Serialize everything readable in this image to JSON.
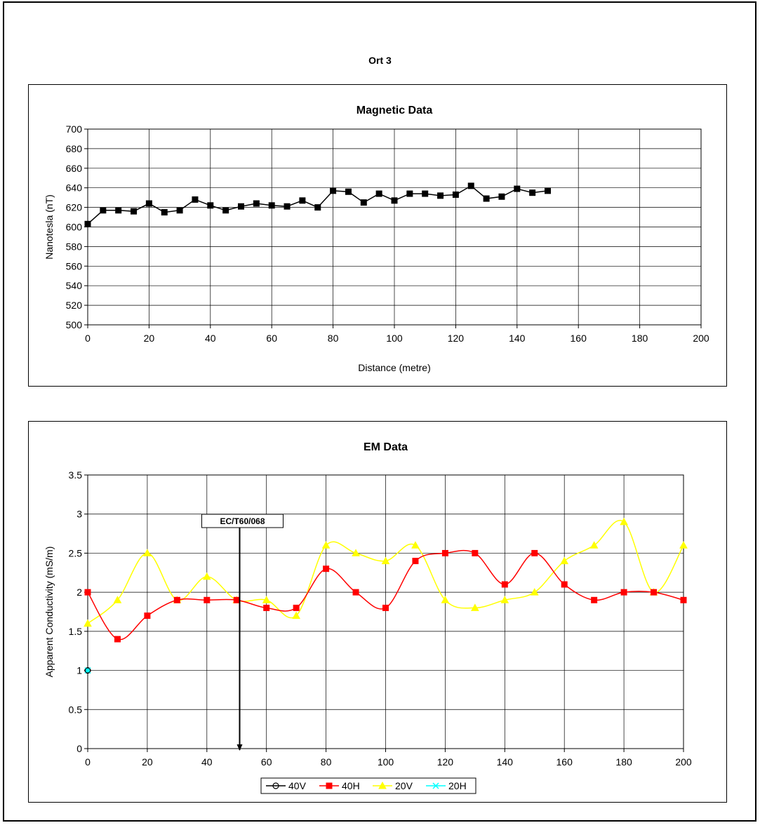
{
  "page": {
    "title": "Ort 3"
  },
  "colors": {
    "mag_series": "#000000",
    "series_40V": "#000000",
    "series_40H": "#ff0000",
    "series_20V": "#ffff00",
    "series_20H": "#00ffff",
    "gridline": "#000000"
  },
  "chart_data": [
    {
      "type": "line",
      "title": "Magnetic Data",
      "xlabel": "Distance (metre)",
      "ylabel": "Nanotesla (nT)",
      "xlim": [
        0,
        200
      ],
      "ylim": [
        500,
        700
      ],
      "xticks": [
        "0",
        "20",
        "40",
        "60",
        "80",
        "100",
        "120",
        "140",
        "160",
        "180",
        "200"
      ],
      "yticks": [
        "500",
        "520",
        "540",
        "560",
        "580",
        "600",
        "620",
        "640",
        "660",
        "680",
        "700"
      ],
      "grid": true,
      "legend": "none",
      "series": [
        {
          "marker": "square",
          "x": [
            0,
            5,
            10,
            15,
            20,
            25,
            30,
            35,
            40,
            45,
            50,
            55,
            60,
            65,
            70,
            75,
            80,
            85,
            90,
            95,
            100,
            105,
            110,
            115,
            120,
            125,
            130,
            135,
            140,
            145,
            150
          ],
          "y": [
            603,
            617,
            617,
            616,
            624,
            615,
            617,
            628,
            622,
            617,
            621,
            624,
            622,
            621,
            627,
            620,
            637,
            636,
            625,
            634,
            627,
            634,
            634,
            632,
            633,
            642,
            629,
            631,
            639,
            635,
            637
          ]
        }
      ]
    },
    {
      "type": "line",
      "title": "EM Data",
      "xlabel": "Distance (metre)",
      "ylabel": "Apparent Conductivity (mS/m)",
      "xlim": [
        0,
        200
      ],
      "ylim": [
        0,
        3.5
      ],
      "xticks": [
        "0",
        "20",
        "40",
        "60",
        "80",
        "100",
        "120",
        "140",
        "160",
        "180",
        "200"
      ],
      "yticks": [
        "0",
        "0.5",
        "1",
        "1.5",
        "2",
        "2.5",
        "3",
        "3.5"
      ],
      "grid": true,
      "legend": "bottom",
      "smooth": true,
      "annotations": [
        {
          "text": "EC/T60/068",
          "x": 51
        }
      ],
      "series": [
        {
          "name": "40V",
          "marker": "circle",
          "x": [
            0
          ],
          "y": [
            1
          ]
        },
        {
          "name": "40H",
          "marker": "square",
          "x": [
            0,
            10,
            20,
            30,
            40,
            50,
            60,
            70,
            80,
            90,
            100,
            110,
            120,
            130,
            140,
            150,
            160,
            170,
            180,
            190,
            200
          ],
          "y": [
            2,
            1.4,
            1.7,
            1.9,
            1.9,
            1.9,
            1.8,
            1.8,
            2.3,
            2,
            1.8,
            2.4,
            2.5,
            2.5,
            2.1,
            2.5,
            2.1,
            1.9,
            2,
            2,
            1.9
          ]
        },
        {
          "name": "20V",
          "marker": "triangle",
          "x": [
            0,
            10,
            20,
            30,
            40,
            50,
            60,
            70,
            80,
            90,
            100,
            110,
            120,
            130,
            140,
            150,
            160,
            170,
            180,
            190,
            200
          ],
          "y": [
            1.6,
            1.9,
            2.5,
            1.9,
            2.2,
            1.9,
            1.9,
            1.7,
            2.6,
            2.5,
            2.4,
            2.6,
            1.9,
            1.8,
            1.9,
            2,
            2.4,
            2.6,
            2.9,
            2,
            2.6
          ]
        },
        {
          "name": "20H",
          "marker": "x",
          "x": [
            0
          ],
          "y": [
            1
          ]
        }
      ]
    }
  ]
}
